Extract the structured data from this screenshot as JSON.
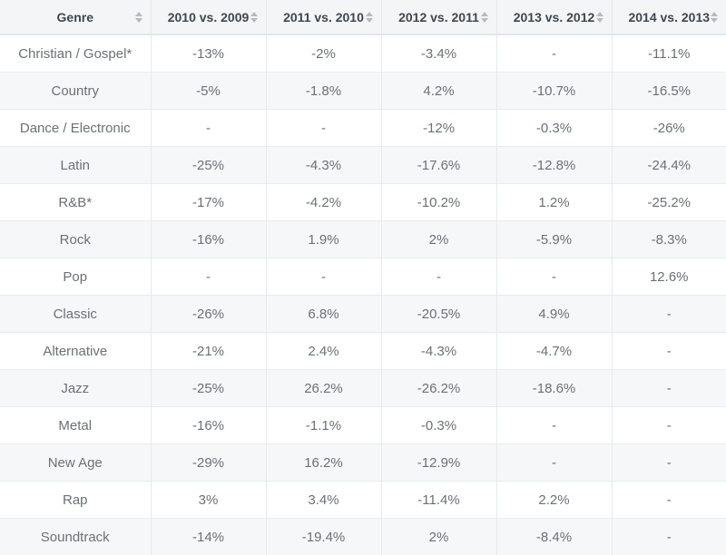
{
  "table": {
    "columns": [
      {
        "id": "genre",
        "label": "Genre",
        "sortable": true
      },
      {
        "id": "2010-vs-2009",
        "label": "2010 vs. 2009",
        "sortable": true
      },
      {
        "id": "2011-vs-2010",
        "label": "2011 vs. 2010",
        "sortable": true
      },
      {
        "id": "2012-vs-2011",
        "label": "2012 vs. 2011",
        "sortable": true
      },
      {
        "id": "2013-vs-2012",
        "label": "2013 vs. 2012",
        "sortable": true
      },
      {
        "id": "2014-vs-2013",
        "label": "2014 vs. 2013",
        "sortable": true
      }
    ],
    "rows": [
      {
        "genre": "Christian / Gospel*",
        "values": [
          "-13%",
          "-2%",
          "-3.4%",
          "-",
          "-11.1%"
        ]
      },
      {
        "genre": "Country",
        "values": [
          "-5%",
          "-1.8%",
          "4.2%",
          "-10.7%",
          "-16.5%"
        ]
      },
      {
        "genre": "Dance / Electronic",
        "values": [
          "-",
          "-",
          "-12%",
          "-0.3%",
          "-26%"
        ]
      },
      {
        "genre": "Latin",
        "values": [
          "-25%",
          "-4.3%",
          "-17.6%",
          "-12.8%",
          "-24.4%"
        ]
      },
      {
        "genre": "R&B*",
        "values": [
          "-17%",
          "-4.2%",
          "-10.2%",
          "1.2%",
          "-25.2%"
        ]
      },
      {
        "genre": "Rock",
        "values": [
          "-16%",
          "1.9%",
          "2%",
          "-5.9%",
          "-8.3%"
        ]
      },
      {
        "genre": "Pop",
        "values": [
          "-",
          "-",
          "-",
          "-",
          "12.6%"
        ]
      },
      {
        "genre": "Classic",
        "values": [
          "-26%",
          "6.8%",
          "-20.5%",
          "4.9%",
          "-"
        ]
      },
      {
        "genre": "Alternative",
        "values": [
          "-21%",
          "2.4%",
          "-4.3%",
          "-4.7%",
          "-"
        ]
      },
      {
        "genre": "Jazz",
        "values": [
          "-25%",
          "26.2%",
          "-26.2%",
          "-18.6%",
          "-"
        ]
      },
      {
        "genre": "Metal",
        "values": [
          "-16%",
          "-1.1%",
          "-0.3%",
          "-",
          "-"
        ]
      },
      {
        "genre": "New Age",
        "values": [
          "-29%",
          "16.2%",
          "-12.9%",
          "-",
          "-"
        ]
      },
      {
        "genre": "Rap",
        "values": [
          "3%",
          "3.4%",
          "-11.4%",
          "2.2%",
          "-"
        ]
      },
      {
        "genre": "Soundtrack",
        "values": [
          "-14%",
          "-19.4%",
          "2%",
          "-8.4%",
          "-"
        ]
      }
    ]
  },
  "icons": {
    "sort": "sort-arrows-icon"
  },
  "colors": {
    "header_bg": "#f4f5f6",
    "header_text": "#3f4650",
    "cell_text": "#6b7077",
    "row_alt_bg": "#f6f7f9",
    "border_vertical": "#e7e9eb",
    "border_horizontal": "#e9ebed",
    "sort_icon": "#b6bac0"
  }
}
